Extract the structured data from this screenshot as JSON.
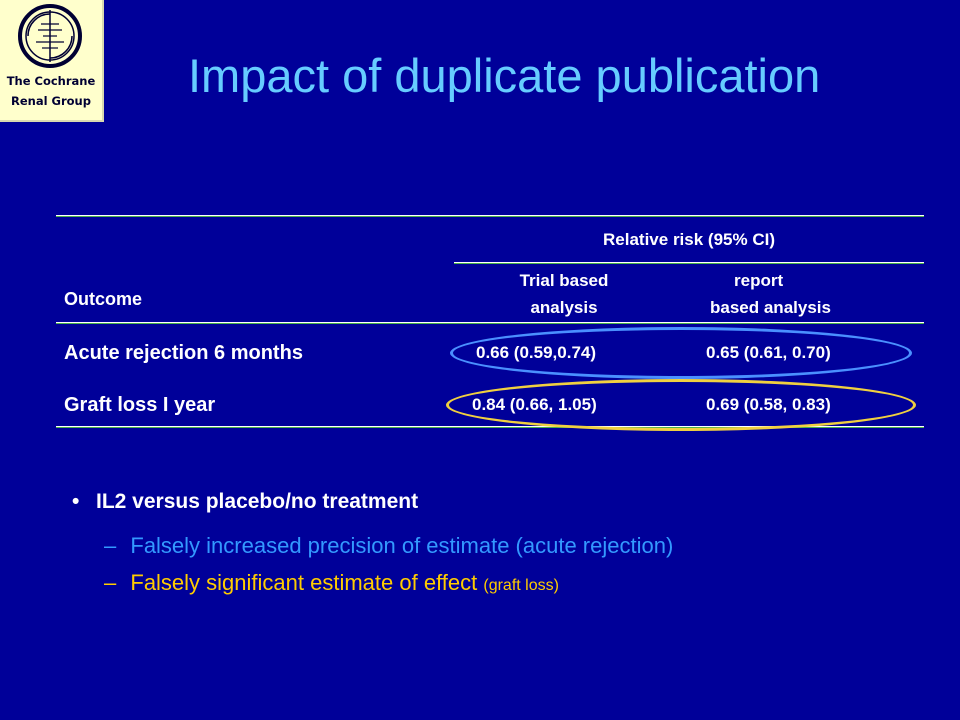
{
  "logo": {
    "line1": "The Cochrane",
    "line2": "Renal Group"
  },
  "title": "Impact of duplicate publication",
  "table": {
    "group_header": "Relative risk (95% CI)",
    "col_outcome": "Outcome",
    "col_trial_line1": "Trial based",
    "col_trial_line2": "analysis",
    "col_report_line1": "report",
    "col_report_line2": "based analysis",
    "rows": [
      {
        "outcome": "Acute rejection 6 months",
        "trial": "0.66 (0.59,0.74)",
        "report": "0.65 (0.61, 0.70)"
      },
      {
        "outcome": "Graft loss I year",
        "trial": "0.84 (0.66, 1.05)",
        "report": "0.69 (0.58, 0.83)"
      }
    ]
  },
  "bullets": {
    "marker": "•",
    "main": "IL2 versus placebo/no treatment",
    "dash": "–",
    "sub1": "Falsely increased precision of estimate (acute rejection)",
    "sub2_main": "Falsely significant estimate of effect",
    "sub2_small": "(graft loss)"
  },
  "colors": {
    "background": "#000099",
    "title": "#66ccff",
    "sub1": "#3399ff",
    "sub2": "#ffcc00",
    "oval_blue": "#4a90ff",
    "oval_yellow": "#f0d040",
    "rule_green": "#4ab04a"
  },
  "icons": {
    "logo_emblem": "cochrane-logo-icon"
  }
}
